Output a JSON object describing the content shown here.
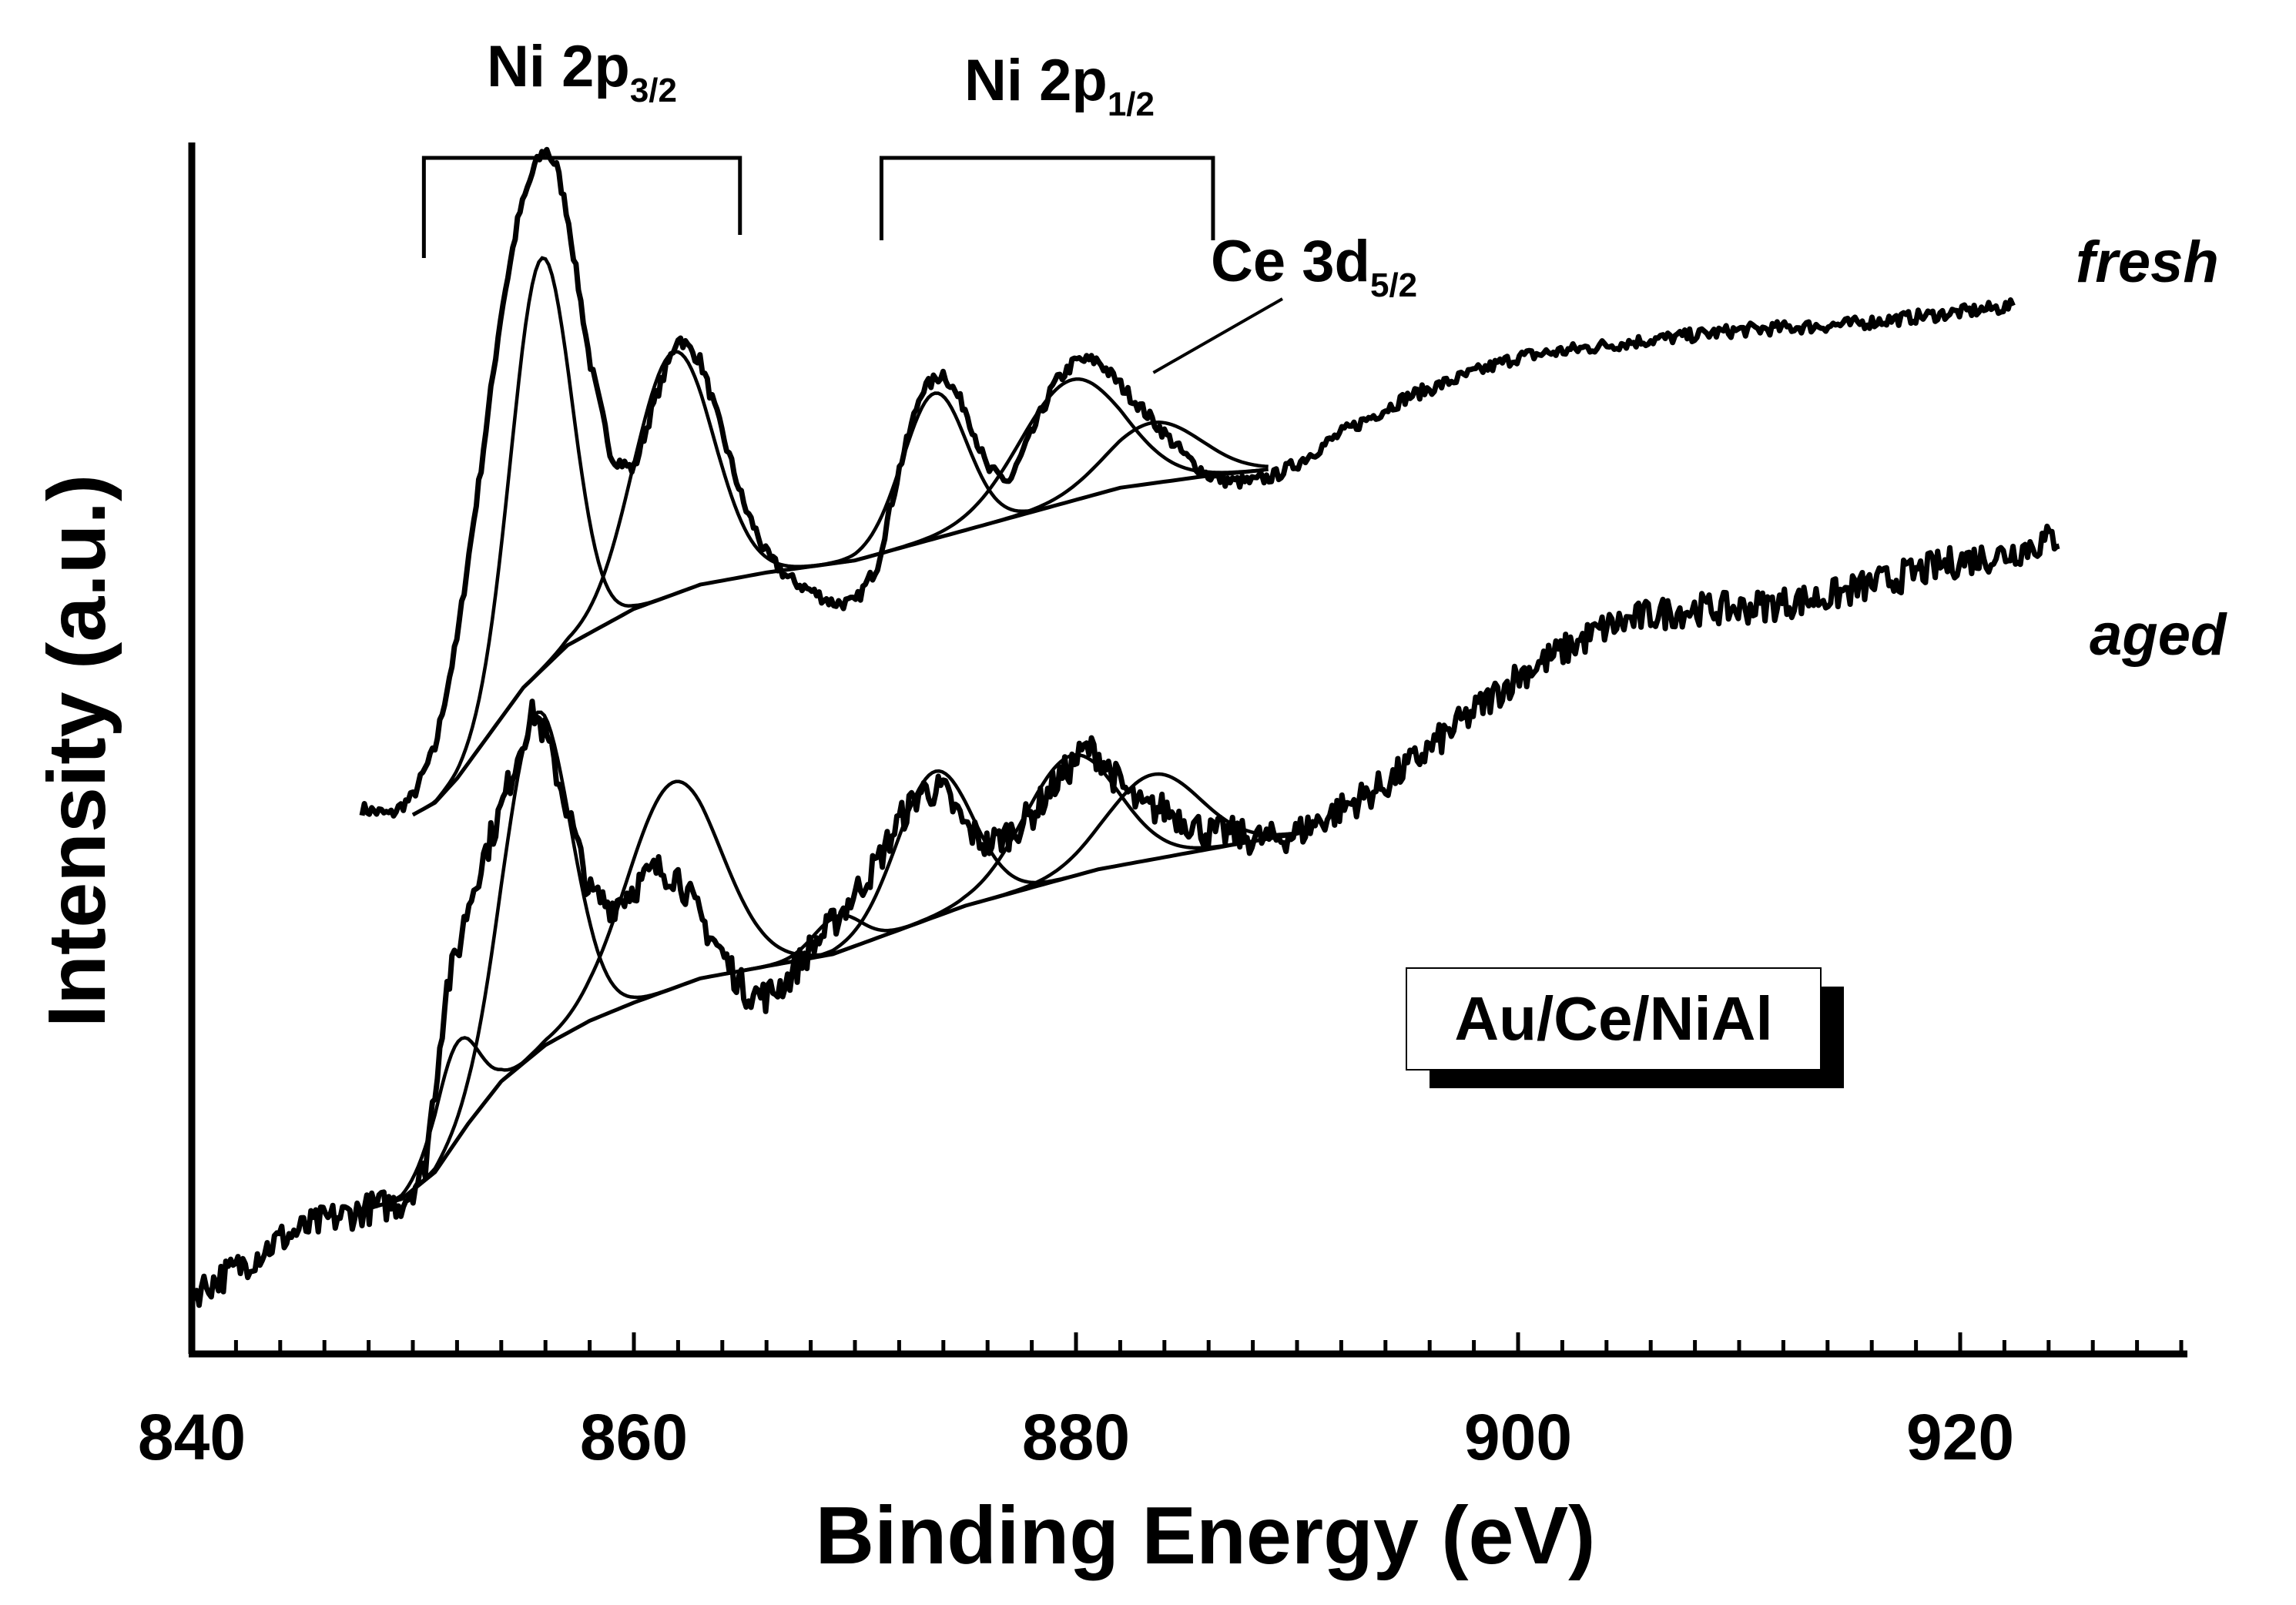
{
  "chart_data": {
    "type": "line",
    "title": "",
    "xlabel": "Binding Energy (eV)",
    "ylabel": "Intensity (a.u.)",
    "xlim": [
      840,
      930
    ],
    "ylim": [
      0,
      100
    ],
    "x_ticks": [
      840,
      860,
      880,
      900,
      920
    ],
    "x_minor_step": 2,
    "sample_label": "Au/Ce/NiAl",
    "annotations": {
      "ni_2p32": {
        "text": "Ni 2p",
        "sub": "3/2",
        "range": [
          850.5,
          864.8
        ]
      },
      "ni_2p12": {
        "text": "Ni 2p",
        "sub": "1/2",
        "range": [
          871.2,
          886.2
        ]
      },
      "ce_3d52": {
        "text": "Ce 3d",
        "sub": "5/2",
        "points_to": [
          883.5,
          81
        ]
      }
    },
    "series": [
      {
        "name": "fresh",
        "x": [
          847.7,
          849,
          850,
          851,
          852,
          853,
          854,
          854.8,
          855.5,
          856,
          856.5,
          857,
          858,
          859,
          860,
          861,
          862,
          863,
          864,
          865,
          866,
          867,
          868,
          869,
          870,
          871,
          872,
          873,
          874,
          875,
          876,
          877,
          878,
          879,
          880,
          881,
          882,
          883,
          884,
          885,
          886,
          887,
          888,
          889,
          890,
          892,
          895,
          898,
          900,
          905,
          910,
          915,
          920,
          922.5
        ],
        "y": [
          45,
          44.5,
          46,
          50,
          59,
          72,
          86,
          94,
          98,
          99.5,
          98,
          94,
          82,
          74,
          73,
          79,
          84,
          82,
          76,
          70,
          66,
          64,
          63,
          62,
          62,
          65,
          73,
          79.5,
          81,
          78,
          73,
          72,
          76,
          80,
          82,
          82,
          80,
          78,
          76,
          74,
          72.5,
          72,
          72,
          72.5,
          73.5,
          76,
          79,
          81,
          82.3,
          83.5,
          84.5,
          85,
          86,
          86.5
        ],
        "components": [
          {
            "name": "Ni 2p3/2 main",
            "center": 855.8,
            "fwhm": 3.2,
            "height": 34
          },
          {
            "name": "Ni 2p3/2 satellite",
            "center": 861.8,
            "fwhm": 4.2,
            "height": 20
          },
          {
            "name": "Ni 2p1/2 main",
            "center": 873.6,
            "fwhm": 3.4,
            "height": 12
          },
          {
            "name": "Ni 2p1/2 satellite",
            "center": 879.8,
            "fwhm": 5.5,
            "height": 10
          },
          {
            "name": "Ce 3d5/2",
            "center": 883.5,
            "fwhm": 5.0,
            "height": 5
          }
        ],
        "background_x": [
          850,
          851,
          852,
          853,
          855,
          857,
          860,
          863,
          866,
          870,
          874,
          878,
          882,
          886,
          888.7
        ],
        "background_y": [
          44.5,
          45.5,
          47.5,
          50,
          55,
          58.5,
          61.5,
          63.5,
          64.5,
          65.5,
          67.5,
          69.5,
          71.5,
          72.5,
          73
        ]
      },
      {
        "name": "aged",
        "x": [
          840,
          842,
          844,
          846,
          848,
          849.5,
          850.5,
          851,
          851.5,
          852,
          852.5,
          853,
          854,
          855,
          855.5,
          856,
          857,
          858,
          859,
          860,
          861,
          862,
          863,
          864,
          865,
          866,
          867,
          868,
          869,
          870,
          871,
          872,
          873,
          874,
          875,
          876,
          877,
          878,
          879,
          880,
          880.5,
          881,
          882,
          883,
          884,
          885,
          886,
          887,
          888,
          889,
          890,
          892,
          894,
          896,
          898,
          900,
          902,
          904,
          906,
          908,
          910,
          912,
          914,
          916,
          918,
          920,
          922,
          924.5
        ],
        "y": [
          5,
          7,
          9.5,
          11,
          12,
          12.5,
          15,
          22,
          30,
          33,
          37,
          40,
          45,
          51,
          53,
          51,
          45,
          38,
          37,
          38.5,
          40,
          39.5,
          36,
          33,
          30,
          29.5,
          31,
          33.5,
          35.5,
          38,
          40.5,
          44,
          46.5,
          46.5,
          43.5,
          42,
          43,
          44.5,
          47,
          49,
          50,
          49.5,
          47,
          45,
          45,
          44,
          43,
          43,
          42.5,
          42.5,
          43,
          45,
          47,
          50,
          53,
          56,
          58,
          60,
          61,
          61.5,
          61.5,
          62,
          62.5,
          63.5,
          64.5,
          65.5,
          66,
          67.5
        ],
        "components": [
          {
            "name": "Ni2+ low BE",
            "center": 852.0,
            "fwhm": 2.3,
            "height": 8
          },
          {
            "name": "Ni 2p3/2 main",
            "center": 855.6,
            "fwhm": 3.6,
            "height": 28
          },
          {
            "name": "Ni 2p3/2 satellite",
            "center": 861.8,
            "fwhm": 5.0,
            "height": 17
          },
          {
            "name": "Ni 2p1/2 low BE",
            "center": 869.2,
            "fwhm": 2.5,
            "height": 3
          },
          {
            "name": "Ni 2p1/2 main",
            "center": 873.6,
            "fwhm": 4.0,
            "height": 12
          },
          {
            "name": "Ni 2p1/2 satellite",
            "center": 879.8,
            "fwhm": 5.0,
            "height": 10
          },
          {
            "name": "Ce 3d5/2",
            "center": 883.5,
            "fwhm": 5.0,
            "height": 7
          }
        ],
        "background_x": [
          848,
          849.5,
          851,
          852.5,
          854,
          856,
          858,
          860,
          863,
          866,
          869,
          872,
          875,
          878,
          881,
          884,
          887,
          890.2
        ],
        "background_y": [
          12,
          12.8,
          15,
          19,
          22.5,
          25.5,
          27.5,
          29,
          31,
          32,
          33,
          35,
          37,
          38.5,
          40,
          41,
          42,
          43
        ]
      }
    ]
  }
}
